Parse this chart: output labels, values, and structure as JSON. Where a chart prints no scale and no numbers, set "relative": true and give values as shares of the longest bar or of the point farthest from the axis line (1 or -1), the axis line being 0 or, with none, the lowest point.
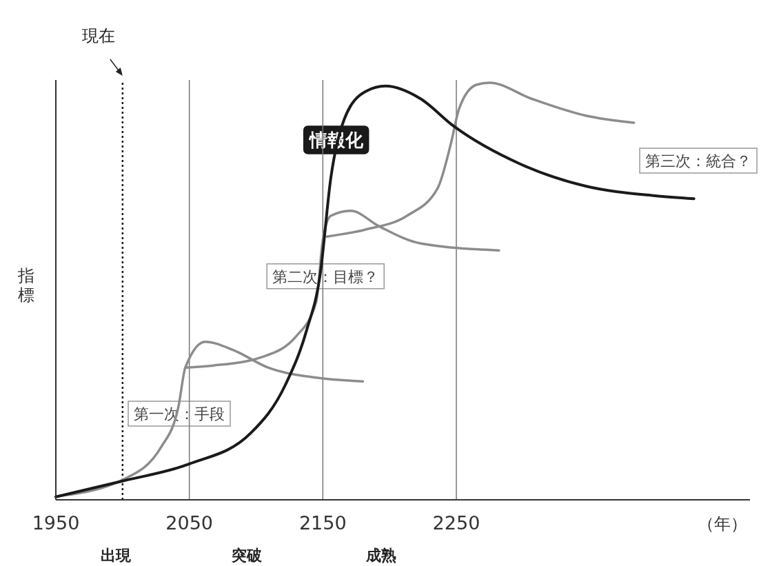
{
  "chart_data": {
    "type": "line",
    "relative": true,
    "xlabel": "（年）",
    "ylabel": "指標",
    "xlim": [
      1950,
      2470
    ],
    "xticks": [
      1950,
      2050,
      2150,
      2250
    ],
    "tick_labels": "x",
    "marker": "none",
    "line_style": "solid",
    "series": [
      {
        "color": "#8c8c8c",
        "x": [
          1950,
          2000,
          2029,
          2042,
          2047,
          2062,
          2083,
          2109,
          2145,
          2180
        ],
        "values": [
          0.008,
          0.048,
          0.127,
          0.226,
          0.317,
          0.379,
          0.359,
          0.317,
          0.293,
          0.284
        ]
      },
      {
        "color": "#8c8c8c",
        "x": [
          2047,
          2068,
          2104,
          2130,
          2145,
          2150,
          2156,
          2171,
          2192,
          2223,
          2282
        ],
        "values": [
          0.317,
          0.322,
          0.342,
          0.392,
          0.474,
          0.623,
          0.681,
          0.693,
          0.656,
          0.615,
          0.598
        ]
      },
      {
        "color": "#8c8c8c",
        "x": [
          2153,
          2182,
          2213,
          2236,
          2246,
          2252,
          2265,
          2275,
          2306,
          2347,
          2383
        ],
        "values": [
          0.631,
          0.648,
          0.681,
          0.747,
          0.855,
          0.937,
          0.995,
          1.0,
          0.962,
          0.921,
          0.904
        ]
      },
      {
        "color": "#1a1a1a",
        "x": [
          1950,
          2000,
          2050,
          2096,
          2122,
          2138,
          2148,
          2156,
          2166,
          2182,
          2197,
          2223,
          2248,
          2298,
          2347,
          2399,
          2428
        ],
        "values": [
          0.007,
          0.045,
          0.086,
          0.16,
          0.276,
          0.408,
          0.54,
          0.772,
          0.912,
          0.979,
          0.992,
          0.962,
          0.896,
          0.805,
          0.752,
          0.729,
          0.722
        ]
      }
    ],
    "ref_lines": [
      {
        "axis": "x",
        "value": 2000,
        "label": "現在",
        "line_style": "dotted",
        "color": "#1a1a1a"
      },
      {
        "axis": "x",
        "value": 2050,
        "color": "#777777"
      },
      {
        "axis": "x",
        "value": 2150,
        "color": "#777777"
      },
      {
        "axis": "x",
        "value": 2250,
        "color": "#777777"
      }
    ],
    "annotations": [
      {
        "text": "情報化",
        "x": 2160,
        "y": 0.863
      },
      "第一次：手段",
      {
        "text": "第二次：目標？",
        "x": 2152,
        "y": 0.536
      },
      "第三次：統合？",
      "出現",
      "突破",
      "成熟"
    ]
  }
}
